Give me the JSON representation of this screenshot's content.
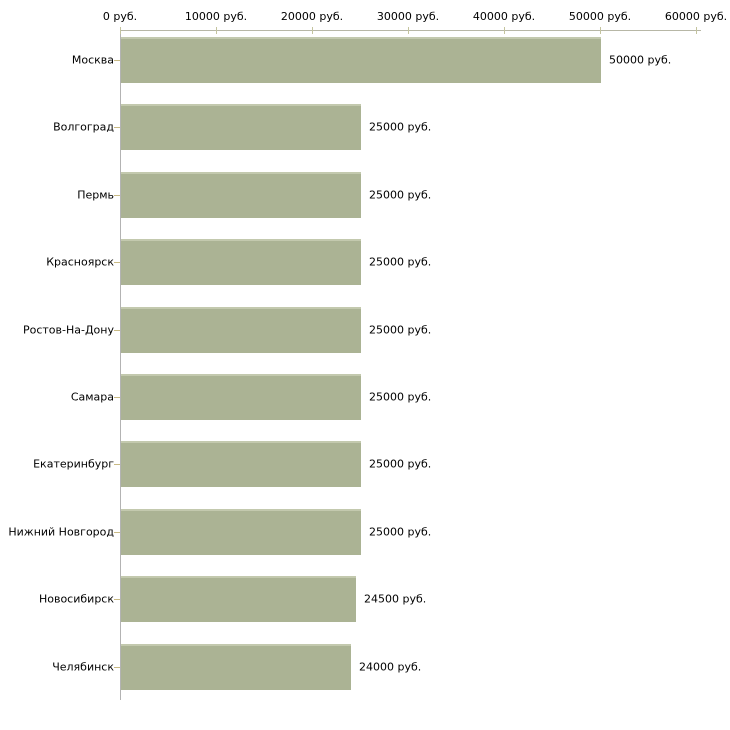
{
  "chart_data": {
    "type": "bar",
    "orientation": "horizontal",
    "title": "",
    "xlabel": "",
    "ylabel": "",
    "xlim": [
      0,
      60000
    ],
    "grid": false,
    "legend": false,
    "unit": "руб.",
    "categories": [
      "Москва",
      "Волгоград",
      "Пермь",
      "Красноярск",
      "Ростов-На-Дону",
      "Самара",
      "Екатеринбург",
      "Нижний Новгород",
      "Новосибирск",
      "Челябинск"
    ],
    "values": [
      50000,
      25000,
      25000,
      25000,
      25000,
      25000,
      25000,
      25000,
      24500,
      24000
    ],
    "value_labels": [
      "50000 руб.",
      "25000 руб.",
      "25000 руб.",
      "25000 руб.",
      "25000 руб.",
      "25000 руб.",
      "25000 руб.",
      "25000 руб.",
      "24500 руб.",
      "24000 руб."
    ],
    "x_ticks": {
      "values": [
        0,
        10000,
        20000,
        30000,
        40000,
        50000,
        60000
      ],
      "labels": [
        "0 руб.",
        "10000 руб.",
        "20000 руб.",
        "30000 руб.",
        "40000 руб.",
        "50000 руб.",
        "60000 руб."
      ]
    },
    "colors": {
      "bar_fill": "#abb394",
      "bar_top_highlight": "#c3c9ae",
      "x_axis_line": "#b7b7a6",
      "y_axis_line": "#b3b3b3",
      "x_tick": "#c4c49e",
      "y_tick": "#c9ba84",
      "text": "#000000",
      "background": "#ffffff"
    }
  }
}
